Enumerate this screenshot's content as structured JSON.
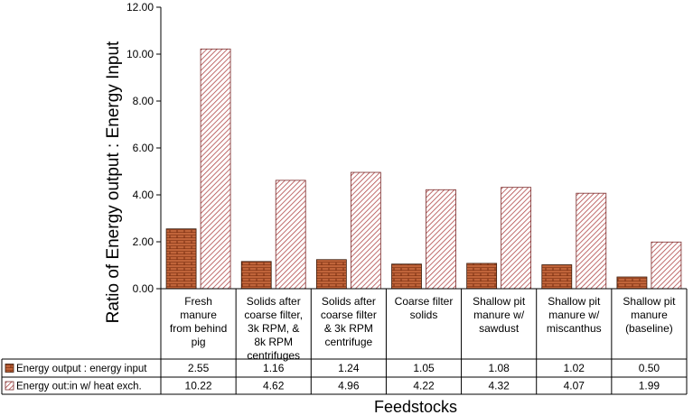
{
  "chart_data": {
    "type": "bar",
    "title": "",
    "xlabel": "Feedstocks",
    "ylabel": "Ratio of Energy output : Energy Input",
    "ylim": [
      0,
      12
    ],
    "y_ticks": [
      "0.00",
      "2.00",
      "4.00",
      "6.00",
      "8.00",
      "10.00",
      "12.00"
    ],
    "grid": false,
    "legend": "data-table",
    "categories": [
      [
        "Fresh",
        "manure",
        "from behind",
        "pig"
      ],
      [
        "Solids after",
        "coarse filter,",
        "3k RPM, &",
        "8k RPM",
        "centrifuges"
      ],
      [
        "Solids after",
        "coarse filter",
        "& 3k RPM",
        "centrifuge"
      ],
      [
        "Coarse filter",
        "solids"
      ],
      [
        "Shallow pit",
        "manure w/",
        "sawdust"
      ],
      [
        "Shallow pit",
        "manure w/",
        "miscanthus"
      ],
      [
        "Shallow pit",
        "manure",
        "(baseline)"
      ]
    ],
    "series": [
      {
        "name": "Energy output : energy input",
        "values": [
          2.55,
          1.16,
          1.24,
          1.05,
          1.08,
          1.02,
          0.5
        ],
        "labels": [
          "2.55",
          "1.16",
          "1.24",
          "1.05",
          "1.08",
          "1.02",
          "0.50"
        ],
        "color": "#8B3A1A",
        "pattern": "brick"
      },
      {
        "name": "Energy out:in w/ heat exch.",
        "values": [
          10.22,
          4.62,
          4.96,
          4.22,
          4.32,
          4.07,
          1.99
        ],
        "labels": [
          "10.22",
          "4.62",
          "4.96",
          "4.22",
          "4.32",
          "4.07",
          "1.99"
        ],
        "color": "#B05050",
        "pattern": "diagonal-hatch"
      }
    ]
  }
}
